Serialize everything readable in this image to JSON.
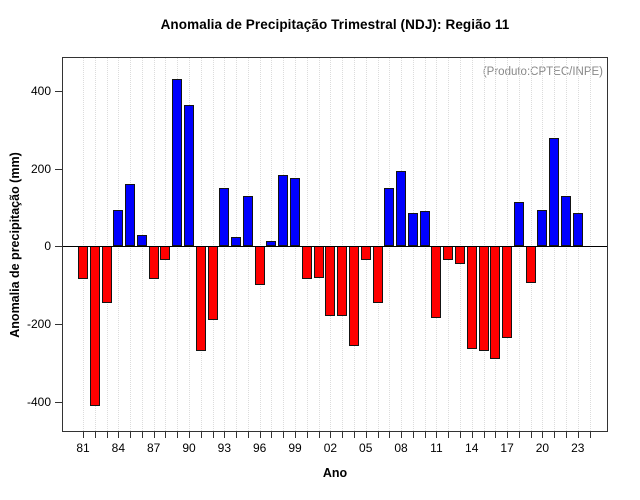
{
  "chart_data": {
    "type": "bar",
    "title": "Anomalia de Precipitação Trimestral (NDJ): Região 11",
    "annotation": "(Produto:CPTEC/INPE)",
    "xlabel": "Ano",
    "ylabel": "Anomalia de precipitação (mm)",
    "categories": [
      1981,
      1982,
      1983,
      1984,
      1985,
      1986,
      1987,
      1988,
      1989,
      1990,
      1991,
      1992,
      1993,
      1994,
      1995,
      1996,
      1997,
      1998,
      1999,
      2000,
      2001,
      2002,
      2003,
      2004,
      2005,
      2006,
      2007,
      2008,
      2009,
      2010,
      2011,
      2012,
      2013,
      2014,
      2015,
      2016,
      2017,
      2018,
      2019,
      2020,
      2021,
      2022,
      2023
    ],
    "values": [
      -85,
      -410,
      -145,
      95,
      160,
      30,
      -85,
      -35,
      430,
      365,
      -270,
      -190,
      150,
      25,
      130,
      -100,
      15,
      185,
      175,
      -85,
      -80,
      -180,
      -180,
      -255,
      -35,
      -145,
      150,
      195,
      85,
      90,
      -185,
      -35,
      -45,
      -265,
      -270,
      -290,
      -235,
      115,
      -95,
      95,
      280,
      130,
      85
    ],
    "yticks": [
      -400,
      -200,
      0,
      200,
      400
    ],
    "ylim": [
      -475,
      485
    ],
    "xtick_labels": [
      "81",
      "84",
      "87",
      "90",
      "93",
      "96",
      "99",
      "02",
      "05",
      "08",
      "11",
      "14",
      "17",
      "20",
      "23"
    ],
    "xtick_interval": 3,
    "grid": "vertical-dotted",
    "legend": "none",
    "colors": {
      "positive": "#0000ff",
      "negative": "#ff0000",
      "bar_border": "#141414",
      "grid": "#dcdcdc",
      "axis": "#333333",
      "annotation": "#888888",
      "background": "#ffffff"
    }
  }
}
